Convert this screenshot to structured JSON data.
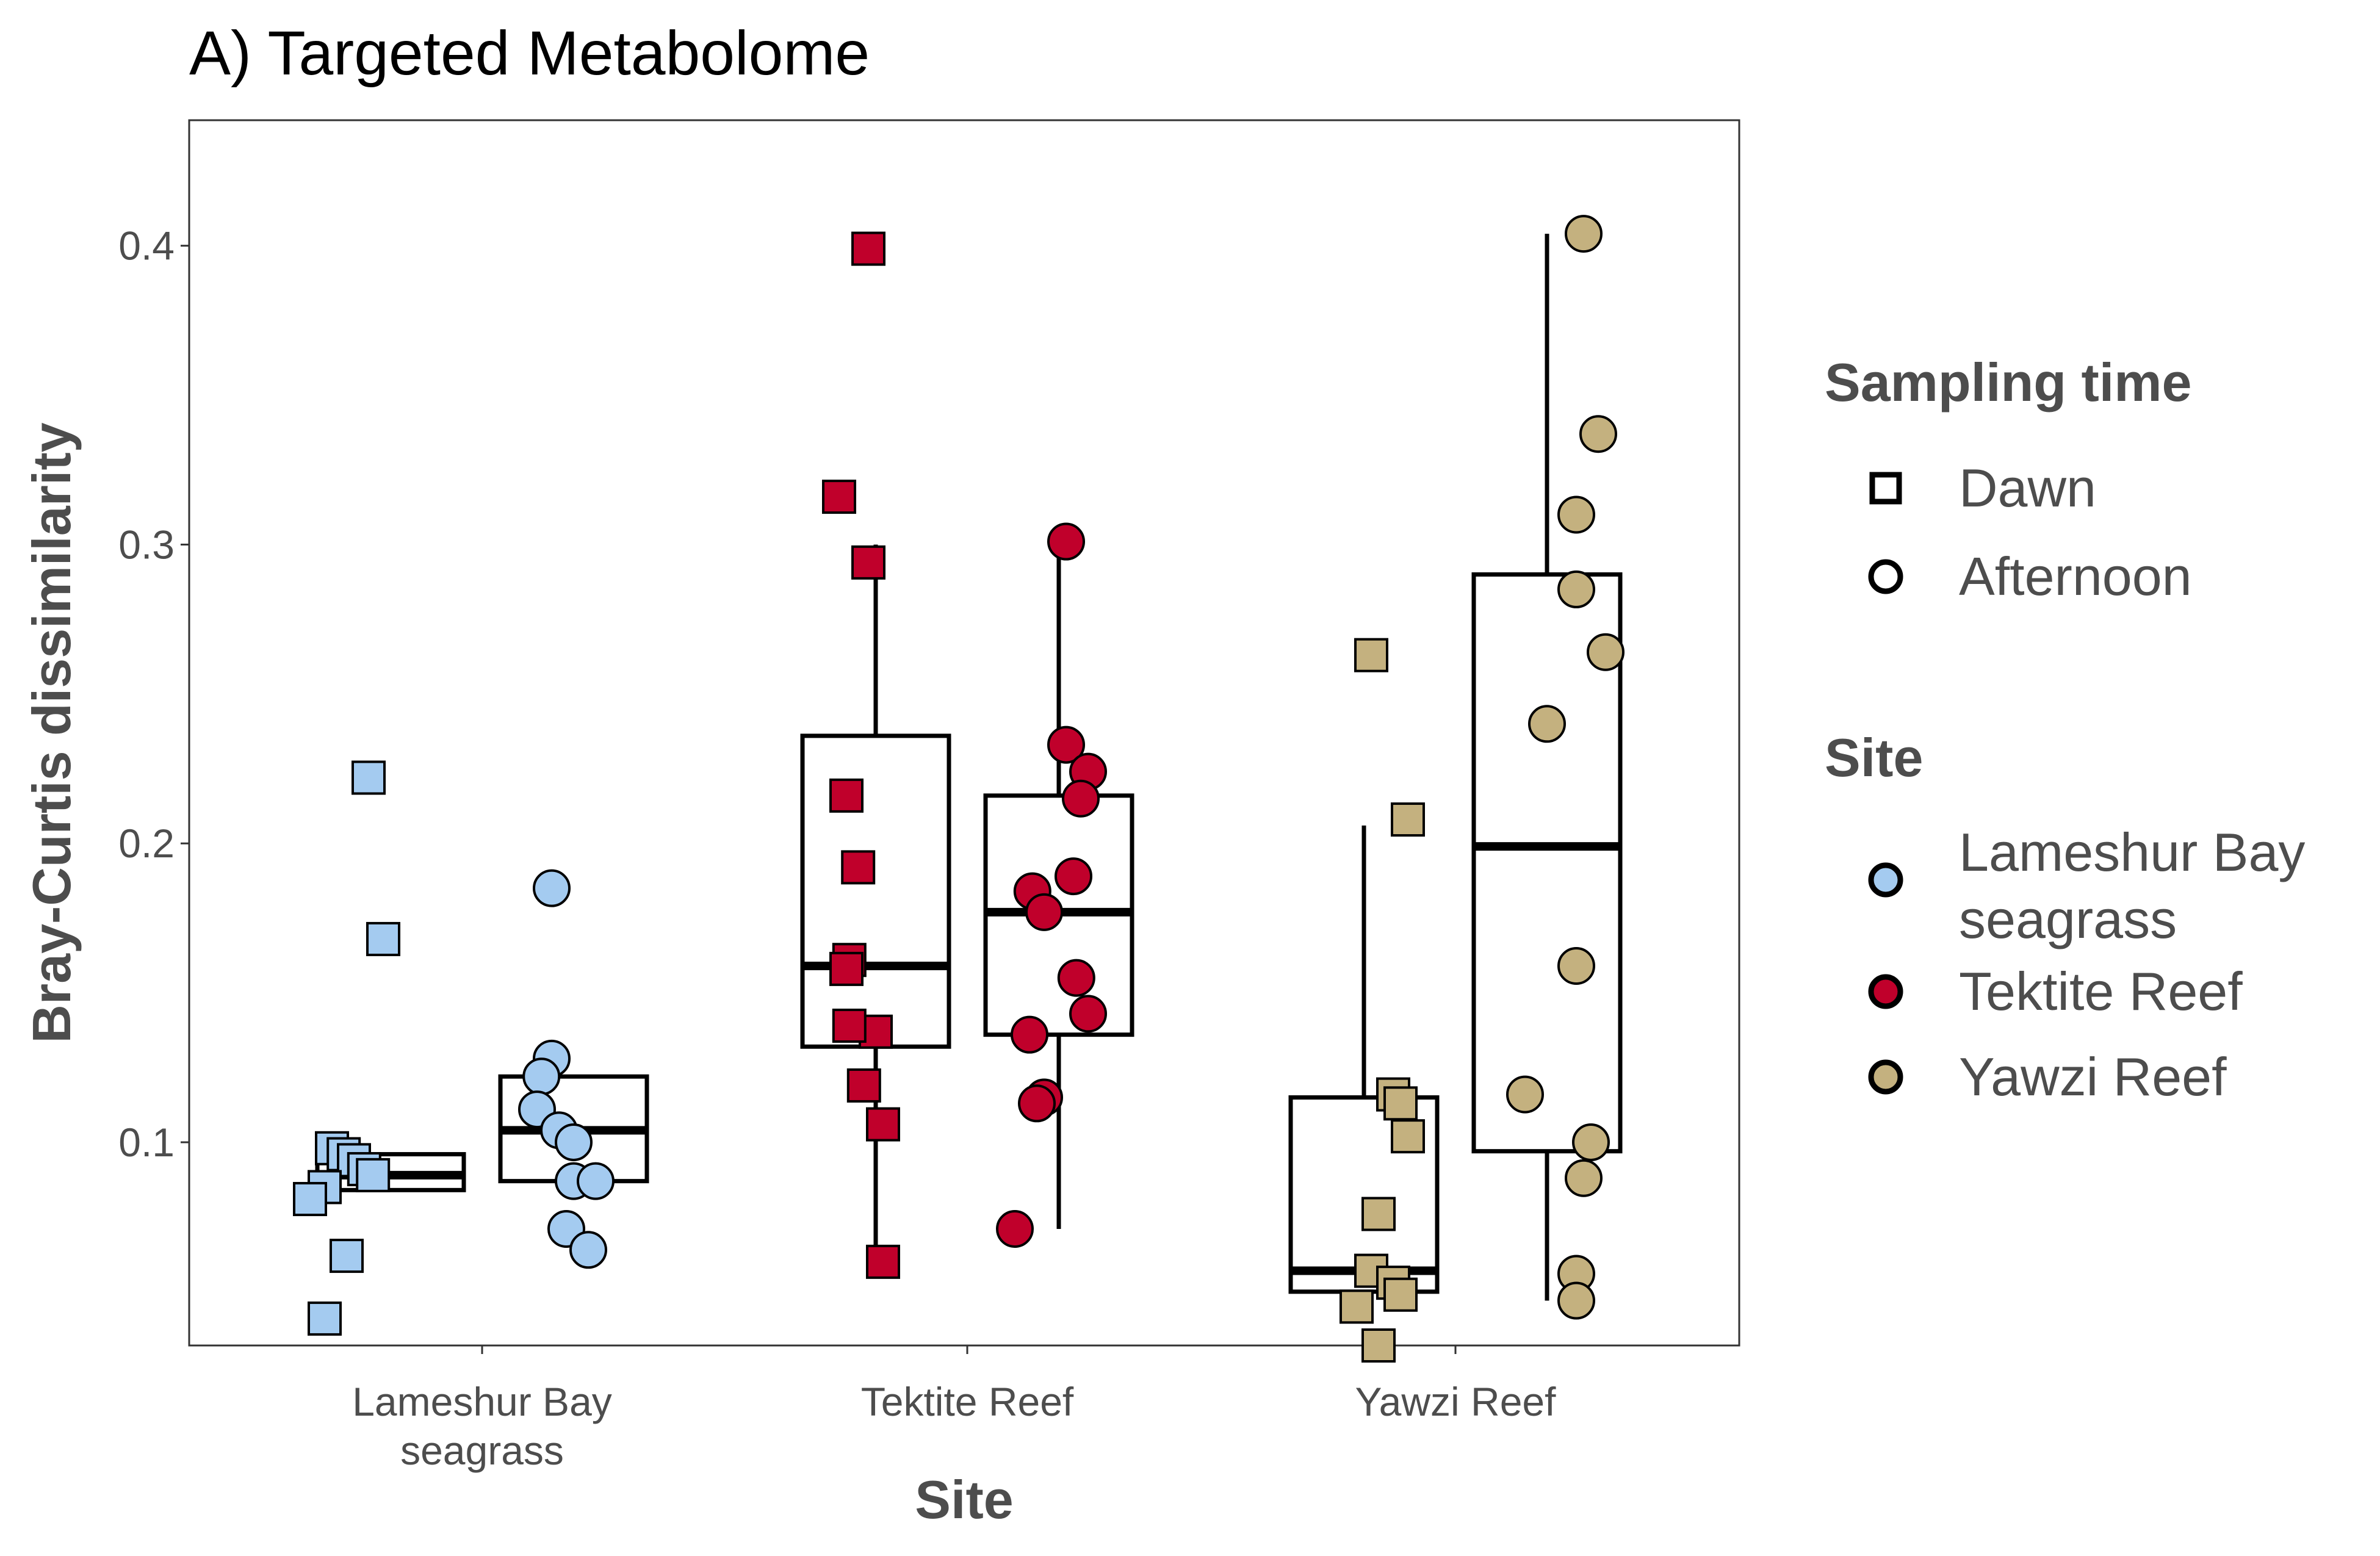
{
  "chart_data": {
    "type": "boxplot",
    "title": "A) Targeted Metabolome",
    "xlabel": "Site",
    "ylabel": "Bray-Curtis dissimilarity",
    "ylim": [
      0.032,
      0.442
    ],
    "yticks": [
      0.1,
      0.2,
      0.3,
      0.4
    ],
    "ytick_labels": [
      "0.1",
      "0.2",
      "0.3",
      "0.4"
    ],
    "grid": false,
    "categories": [
      "Lameshur Bay\nseagrass",
      "Tektite Reef",
      "Yawzi Reef"
    ],
    "legend": {
      "placement": "right",
      "shape_title": "Sampling time",
      "shape_items": [
        {
          "label": "Dawn",
          "shape": "square"
        },
        {
          "label": "Afternoon",
          "shape": "circle"
        }
      ],
      "color_title": "Site",
      "color_items": [
        {
          "label": "Lameshur Bay\nseagrass",
          "color": "#a4cbf0"
        },
        {
          "label": "Tektite Reef",
          "color": "#c0002b"
        },
        {
          "label": "Yawzi Reef",
          "color": "#c4b17f"
        }
      ]
    },
    "groups": [
      {
        "site": "Lameshur Bay\nseagrass",
        "time": "Dawn",
        "shape": "square",
        "color": "#a4cbf0",
        "box": {
          "q1": 0.084,
          "median": 0.089,
          "q3": 0.096,
          "whisker_low": 0.084,
          "whisker_high": 0.096
        },
        "points": [
          {
            "j": -0.15,
            "y": 0.222
          },
          {
            "j": -0.05,
            "y": 0.168
          },
          {
            "j": -0.4,
            "y": 0.098
          },
          {
            "j": -0.32,
            "y": 0.096
          },
          {
            "j": -0.25,
            "y": 0.094
          },
          {
            "j": -0.18,
            "y": 0.091
          },
          {
            "j": -0.12,
            "y": 0.089
          },
          {
            "j": -0.45,
            "y": 0.085
          },
          {
            "j": -0.55,
            "y": 0.081
          },
          {
            "j": -0.3,
            "y": 0.062
          },
          {
            "j": -0.45,
            "y": 0.041
          }
        ]
      },
      {
        "site": "Lameshur Bay\nseagrass",
        "time": "Afternoon",
        "shape": "circle",
        "color": "#a4cbf0",
        "box": {
          "q1": 0.087,
          "median": 0.104,
          "q3": 0.122,
          "whisker_low": 0.087,
          "whisker_high": 0.122
        },
        "points": [
          {
            "j": -0.15,
            "y": 0.185
          },
          {
            "j": -0.15,
            "y": 0.128
          },
          {
            "j": -0.22,
            "y": 0.122
          },
          {
            "j": -0.25,
            "y": 0.111
          },
          {
            "j": -0.1,
            "y": 0.104
          },
          {
            "j": 0.0,
            "y": 0.1
          },
          {
            "j": 0.0,
            "y": 0.087
          },
          {
            "j": 0.15,
            "y": 0.087
          },
          {
            "j": -0.05,
            "y": 0.071
          },
          {
            "j": 0.1,
            "y": 0.064
          }
        ]
      },
      {
        "site": "Tektite Reef",
        "time": "Dawn",
        "shape": "square",
        "color": "#c0002b",
        "box": {
          "q1": 0.132,
          "median": 0.159,
          "q3": 0.236,
          "whisker_low": 0.06,
          "whisker_high": 0.3
        },
        "points": [
          {
            "j": -0.05,
            "y": 0.399
          },
          {
            "j": -0.25,
            "y": 0.316
          },
          {
            "j": -0.05,
            "y": 0.294
          },
          {
            "j": -0.2,
            "y": 0.216
          },
          {
            "j": -0.12,
            "y": 0.192
          },
          {
            "j": -0.18,
            "y": 0.161
          },
          {
            "j": -0.2,
            "y": 0.158
          },
          {
            "j": 0.0,
            "y": 0.137
          },
          {
            "j": -0.18,
            "y": 0.139
          },
          {
            "j": -0.08,
            "y": 0.119
          },
          {
            "j": 0.05,
            "y": 0.106
          },
          {
            "j": 0.05,
            "y": 0.06
          }
        ]
      },
      {
        "site": "Tektite Reef",
        "time": "Afternoon",
        "shape": "circle",
        "color": "#c0002b",
        "box": {
          "q1": 0.136,
          "median": 0.177,
          "q3": 0.216,
          "whisker_low": 0.071,
          "whisker_high": 0.301
        },
        "points": [
          {
            "j": 0.05,
            "y": 0.301
          },
          {
            "j": 0.05,
            "y": 0.233
          },
          {
            "j": 0.2,
            "y": 0.224
          },
          {
            "j": 0.15,
            "y": 0.215
          },
          {
            "j": 0.1,
            "y": 0.189
          },
          {
            "j": -0.18,
            "y": 0.184
          },
          {
            "j": -0.1,
            "y": 0.177
          },
          {
            "j": 0.12,
            "y": 0.155
          },
          {
            "j": 0.2,
            "y": 0.143
          },
          {
            "j": -0.2,
            "y": 0.136
          },
          {
            "j": -0.1,
            "y": 0.115
          },
          {
            "j": -0.15,
            "y": 0.113
          },
          {
            "j": -0.3,
            "y": 0.071
          }
        ]
      },
      {
        "site": "Yawzi Reef",
        "time": "Dawn",
        "shape": "square",
        "color": "#c4b17f",
        "box": {
          "q1": 0.05,
          "median": 0.057,
          "q3": 0.115,
          "whisker_low": 0.05,
          "whisker_high": 0.206
        },
        "points": [
          {
            "j": 0.05,
            "y": 0.263
          },
          {
            "j": 0.3,
            "y": 0.208
          },
          {
            "j": 0.2,
            "y": 0.116
          },
          {
            "j": 0.25,
            "y": 0.113
          },
          {
            "j": 0.3,
            "y": 0.102
          },
          {
            "j": 0.1,
            "y": 0.076
          },
          {
            "j": 0.05,
            "y": 0.057
          },
          {
            "j": 0.2,
            "y": 0.053
          },
          {
            "j": -0.05,
            "y": 0.045
          },
          {
            "j": 0.25,
            "y": 0.049
          },
          {
            "j": 0.1,
            "y": 0.032
          }
        ]
      },
      {
        "site": "Yawzi Reef",
        "time": "Afternoon",
        "shape": "circle",
        "color": "#c4b17f",
        "box": {
          "q1": 0.097,
          "median": 0.199,
          "q3": 0.29,
          "whisker_low": 0.047,
          "whisker_high": 0.404
        },
        "points": [
          {
            "j": 0.25,
            "y": 0.404
          },
          {
            "j": 0.35,
            "y": 0.337
          },
          {
            "j": 0.2,
            "y": 0.31
          },
          {
            "j": 0.2,
            "y": 0.285
          },
          {
            "j": 0.4,
            "y": 0.264
          },
          {
            "j": 0.0,
            "y": 0.24
          },
          {
            "j": 0.2,
            "y": 0.159
          },
          {
            "j": -0.15,
            "y": 0.116
          },
          {
            "j": 0.3,
            "y": 0.1
          },
          {
            "j": 0.25,
            "y": 0.088
          },
          {
            "j": 0.2,
            "y": 0.056
          },
          {
            "j": 0.2,
            "y": 0.047
          }
        ]
      }
    ]
  }
}
